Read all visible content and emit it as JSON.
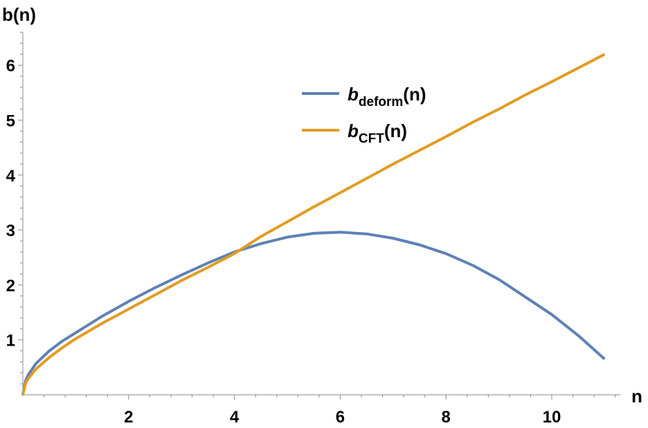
{
  "chart_data": {
    "type": "line",
    "xlabel": "n",
    "ylabel": "b(n)",
    "xlim": [
      0,
      11.3
    ],
    "ylim": [
      0,
      6.6
    ],
    "x_ticks": [
      2,
      4,
      6,
      8,
      10
    ],
    "y_ticks": [
      1,
      2,
      3,
      4,
      5,
      6
    ],
    "legend_position": "upper-center",
    "grid": false,
    "series": [
      {
        "name_main": "b",
        "name_sub": "deform",
        "name_suffix": "(n)",
        "color": "#5e81b5",
        "x": [
          0,
          0.05,
          0.1,
          0.25,
          0.5,
          0.75,
          1,
          1.5,
          2,
          2.5,
          3,
          3.5,
          4,
          4.5,
          5,
          5.5,
          6,
          6.5,
          7,
          7.5,
          8,
          8.5,
          9,
          9.5,
          10,
          10.5,
          11
        ],
        "y": [
          0,
          0.25,
          0.36,
          0.57,
          0.8,
          0.98,
          1.13,
          1.43,
          1.7,
          1.95,
          2.18,
          2.4,
          2.6,
          2.75,
          2.87,
          2.94,
          2.96,
          2.93,
          2.85,
          2.73,
          2.57,
          2.36,
          2.1,
          1.78,
          1.46,
          1.08,
          0.65
        ]
      },
      {
        "name_main": "b",
        "name_sub": "CFT",
        "name_suffix": "(n)",
        "color": "#e19c24",
        "x": [
          0,
          0.05,
          0.1,
          0.25,
          0.5,
          0.75,
          1,
          1.5,
          2,
          2.5,
          3,
          3.5,
          4,
          4.5,
          5,
          5.5,
          6,
          6.5,
          7,
          7.5,
          8,
          8.5,
          9,
          9.5,
          10,
          10.5,
          11
        ],
        "y": [
          0,
          0.2,
          0.29,
          0.47,
          0.68,
          0.86,
          1.02,
          1.3,
          1.56,
          1.82,
          2.08,
          2.32,
          2.57,
          2.88,
          3.15,
          3.42,
          3.68,
          3.94,
          4.2,
          4.45,
          4.7,
          4.96,
          5.2,
          5.46,
          5.7,
          5.95,
          6.2
        ]
      }
    ]
  }
}
